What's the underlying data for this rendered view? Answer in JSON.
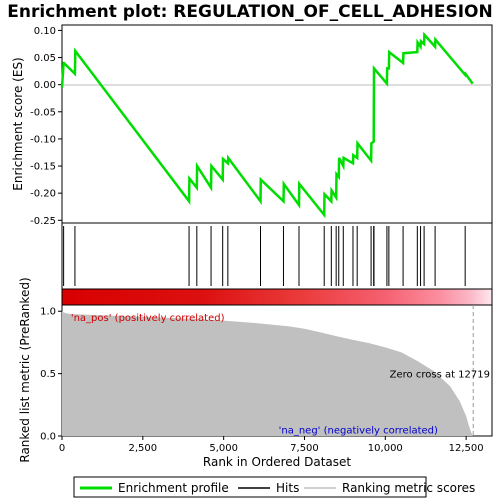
{
  "chart_data": [
    {
      "type": "line",
      "title": "Enrichment plot: REGULATION_OF_CELL_ADHESION",
      "ylabel": "Enrichment score (ES)",
      "xlim": [
        0,
        13300
      ],
      "ylim": [
        -0.255,
        0.11
      ],
      "yticks": [
        "0.10",
        "0.05",
        "0.00",
        "-0.05",
        "-0.10",
        "-0.15",
        "-0.20",
        "-0.25"
      ],
      "ytick_values": [
        0.1,
        0.05,
        0.0,
        -0.05,
        -0.1,
        -0.15,
        -0.2,
        -0.25
      ],
      "grid": false,
      "series": [
        {
          "name": "Enrichment profile",
          "color": "#00dd00",
          "x": [
            0,
            50,
            60,
            400,
            410,
            3930,
            3940,
            4170,
            4180,
            4610,
            4620,
            4970,
            4980,
            5130,
            5140,
            6140,
            6150,
            6850,
            6860,
            7330,
            7340,
            8110,
            8120,
            8330,
            8340,
            8480,
            8490,
            8560,
            8570,
            8700,
            8710,
            9000,
            9010,
            9130,
            9140,
            9560,
            9570,
            9640,
            9650,
            10050,
            10060,
            10110,
            10120,
            10550,
            10560,
            10990,
            11000,
            11090,
            11100,
            11200,
            11210,
            11540,
            11550,
            12470,
            12480,
            12700
          ],
          "y": [
            -0.005,
            0.04,
            0.04,
            0.02,
            0.062,
            -0.215,
            -0.173,
            -0.19,
            -0.15,
            -0.19,
            -0.15,
            -0.175,
            -0.137,
            -0.145,
            -0.135,
            -0.215,
            -0.175,
            -0.215,
            -0.183,
            -0.222,
            -0.183,
            -0.24,
            -0.202,
            -0.215,
            -0.195,
            -0.208,
            -0.165,
            -0.17,
            -0.135,
            -0.15,
            -0.135,
            -0.145,
            -0.13,
            -0.135,
            -0.108,
            -0.14,
            -0.108,
            -0.105,
            0.03,
            0.002,
            0.03,
            0.03,
            0.06,
            0.04,
            0.058,
            0.06,
            0.078,
            0.07,
            0.08,
            0.075,
            0.092,
            0.07,
            0.083,
            0.018,
            0.02,
            0.002
          ]
        }
      ]
    },
    {
      "type": "scatter",
      "name": "Hits",
      "xlim": [
        0,
        13300
      ],
      "hits": [
        50,
        400,
        3930,
        4170,
        4610,
        4970,
        5130,
        6140,
        6850,
        7330,
        8110,
        8330,
        8480,
        8560,
        8700,
        9000,
        9130,
        9560,
        9640,
        9650,
        10050,
        10110,
        10550,
        10990,
        11090,
        11200,
        11540,
        12470
      ]
    },
    {
      "type": "area",
      "title": "",
      "xlabel": "Rank in Ordered Dataset",
      "ylabel": "Ranked list metric (PreRanked)",
      "xlim": [
        0,
        13300
      ],
      "ylim": [
        0,
        1.05
      ],
      "xticks": [
        "0",
        "2,500",
        "5,000",
        "7,500",
        "10,000",
        "12,500"
      ],
      "xtick_values": [
        0,
        2500,
        5000,
        7500,
        10000,
        12500
      ],
      "yticks": [
        "0.0",
        "0.5",
        "1.0"
      ],
      "ytick_values": [
        0.0,
        0.5,
        1.0
      ],
      "series": [
        {
          "name": "Ranking metric scores",
          "color": "#c0c0c0",
          "x": [
            0,
            50,
            200,
            500,
            1000,
            2000,
            3000,
            4000,
            5000,
            6000,
            7000,
            7500,
            8000,
            8500,
            9000,
            9500,
            10000,
            10500,
            11000,
            11500,
            12000,
            12300,
            12500,
            12600,
            12700
          ],
          "y": [
            1.0,
            0.99,
            0.98,
            0.975,
            0.97,
            0.96,
            0.95,
            0.94,
            0.925,
            0.905,
            0.88,
            0.86,
            0.83,
            0.8,
            0.77,
            0.745,
            0.71,
            0.67,
            0.6,
            0.52,
            0.4,
            0.28,
            0.16,
            0.07,
            0.0
          ]
        }
      ],
      "annotations": [
        {
          "text": "'na_pos' (positively correlated)",
          "x": 150,
          "y": 0.97,
          "color": "#cc0000"
        },
        {
          "text": "'na_neg' (negatively correlated)",
          "x": 6700,
          "y": 0.02,
          "color": "#0000cc"
        },
        {
          "text": "Zero cross at 12719",
          "x": 12719,
          "y": 0.5,
          "color": "#000000"
        }
      ],
      "zero_cross": 12719
    }
  ],
  "legend": {
    "items": [
      {
        "label": "Enrichment profile",
        "color": "#00dd00"
      },
      {
        "label": "Hits",
        "color": "#000000"
      },
      {
        "label": "Ranking metric scores",
        "color": "#c0c0c0"
      }
    ]
  }
}
